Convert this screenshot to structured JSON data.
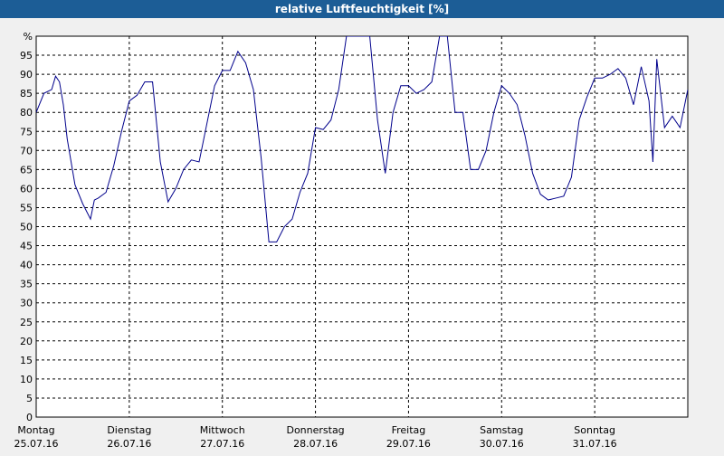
{
  "chart_data": {
    "type": "line",
    "title": "relative Luftfeuchtigkeit [%]",
    "xlim": [
      0,
      168
    ],
    "ylim": [
      0,
      100
    ],
    "xticks": [
      {
        "value": 0,
        "label": "Montag",
        "date": "25.07.16"
      },
      {
        "value": 24,
        "label": "Dienstag",
        "date": "26.07.16"
      },
      {
        "value": 48,
        "label": "Mittwoch",
        "date": "27.07.16"
      },
      {
        "value": 72,
        "label": "Donnerstag",
        "date": "28.07.16"
      },
      {
        "value": 96,
        "label": "Freitag",
        "date": "29.07.16"
      },
      {
        "value": 120,
        "label": "Samstag",
        "date": "30.07.16"
      },
      {
        "value": 144,
        "label": "Sonntag",
        "date": "31.07.16"
      }
    ],
    "yticks": [
      0,
      5,
      10,
      15,
      20,
      25,
      30,
      35,
      40,
      45,
      50,
      55,
      60,
      65,
      70,
      75,
      80,
      85,
      90,
      95,
      {
        "value": 100,
        "label": "%"
      }
    ],
    "grid": true,
    "series": [
      {
        "color": "#00008b",
        "x": [
          0,
          2,
          4,
          5,
          6,
          7,
          8,
          10,
          12,
          14,
          15,
          16,
          18,
          20,
          22,
          24,
          26,
          28,
          30,
          32,
          34,
          36,
          38,
          40,
          42,
          44,
          46,
          48,
          50,
          52,
          54,
          56,
          58,
          60,
          62,
          64,
          66,
          68,
          70,
          72,
          74,
          76,
          78,
          80,
          82,
          84,
          86,
          88,
          90,
          92,
          94,
          96,
          98,
          100,
          102,
          104,
          106,
          108,
          110,
          112,
          114,
          116,
          118,
          120,
          122,
          124,
          126,
          128,
          130,
          132,
          134,
          136,
          138,
          140,
          142,
          144,
          146,
          148,
          150,
          152,
          154,
          156,
          158,
          159,
          160,
          162,
          164,
          166,
          168
        ],
        "values": [
          80,
          85,
          86,
          89.5,
          88,
          82,
          73,
          61,
          56,
          52,
          57,
          57.5,
          59,
          66,
          75,
          83,
          84.5,
          88,
          88,
          67,
          56.5,
          60,
          65,
          67.5,
          67,
          77,
          87,
          91,
          91,
          96,
          93,
          86,
          68,
          46,
          46,
          50,
          52,
          59,
          64,
          76,
          75.5,
          78,
          86,
          100,
          100,
          100,
          100,
          78,
          64,
          80,
          87,
          87,
          85,
          86,
          88,
          100,
          100,
          80,
          80,
          65,
          65,
          70,
          80,
          87,
          85,
          82,
          74,
          64,
          58.5,
          57,
          57.5,
          58,
          63,
          78,
          84,
          89,
          89,
          90,
          91.5,
          89,
          82,
          92,
          83,
          67,
          94,
          76,
          79,
          76,
          86
        ]
      }
    ]
  }
}
